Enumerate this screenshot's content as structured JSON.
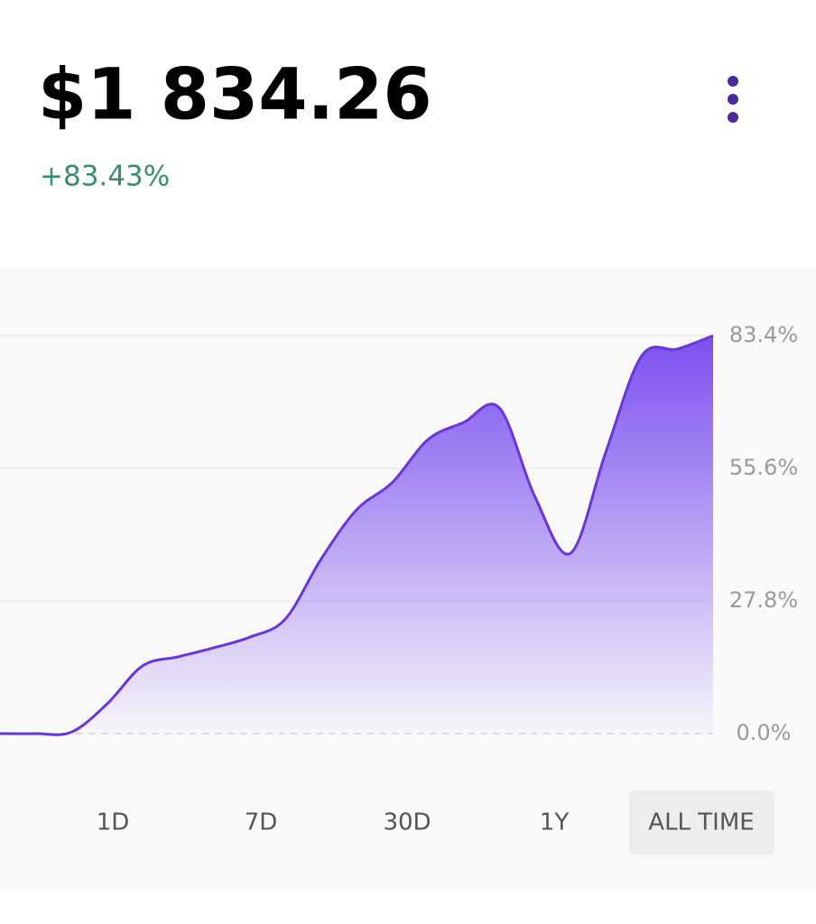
{
  "header": {
    "price": "$1 834.26",
    "change": "+83.43%"
  },
  "chart_data": {
    "type": "area",
    "color": "#6a35d9",
    "values": [
      0,
      0,
      0.3,
      6.2,
      14.2,
      16.1,
      18.0,
      20.2,
      24.0,
      36.5,
      46.9,
      52.6,
      61.6,
      65.2,
      68.3,
      49.7,
      37.8,
      59.2,
      79.2,
      80.6,
      83.4
    ],
    "ylim": [
      0,
      83.4
    ],
    "yticks": [
      {
        "value": 0,
        "label": "0.0%"
      },
      {
        "value": 27.8,
        "label": "27.8%"
      },
      {
        "value": 55.6,
        "label": "55.6%"
      },
      {
        "value": 83.4,
        "label": "83.4%"
      }
    ],
    "grid": true
  },
  "ranges": {
    "options": [
      "1D",
      "7D",
      "30D",
      "1Y",
      "ALL TIME"
    ],
    "selected": 4
  }
}
